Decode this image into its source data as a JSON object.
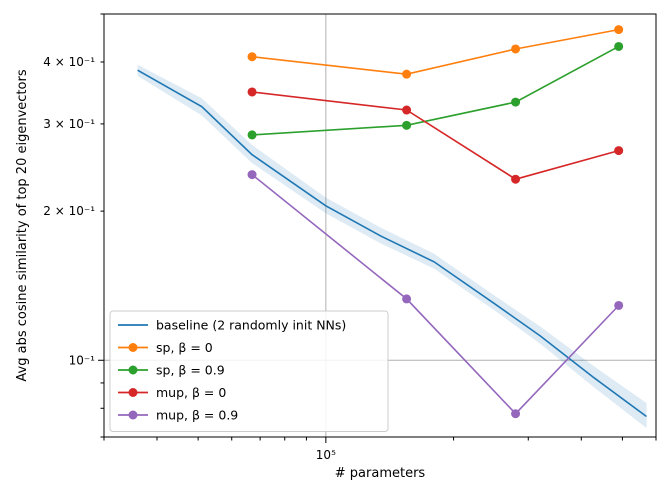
{
  "chart_data": {
    "type": "line",
    "xscale": "log",
    "yscale": "log",
    "xlabel": "# parameters",
    "ylabel": "Avg abs cosine similarity of top 20 eigenvectors",
    "xlim": [
      30000,
      600000
    ],
    "ylim": [
      0.07,
      0.5
    ],
    "grid": "major ticks only",
    "legend_position": "lower-left",
    "x_tick_labels": [
      {
        "value": 100000,
        "label": "10⁵"
      }
    ],
    "y_tick_labels": [
      {
        "value": 0.1,
        "label": "10⁻¹"
      },
      {
        "value": 0.2,
        "label": "2 × 10⁻¹"
      },
      {
        "value": 0.3,
        "label": "3 × 10⁻¹"
      },
      {
        "value": 0.4,
        "label": "4 × 10⁻¹"
      }
    ],
    "series": [
      {
        "name": "baseline (2 randomly init NNs)",
        "color": "#1f77b4",
        "marker": "none",
        "band": true,
        "x": [
          36000,
          51000,
          67000,
          100000,
          135000,
          180000,
          250000,
          320000,
          430000,
          570000
        ],
        "y": [
          0.385,
          0.325,
          0.26,
          0.205,
          0.178,
          0.158,
          0.13,
          0.112,
          0.092,
          0.077
        ],
        "band_lower": [
          0.375,
          0.312,
          0.25,
          0.198,
          0.172,
          0.153,
          0.126,
          0.108,
          0.088,
          0.073
        ],
        "band_upper": [
          0.395,
          0.338,
          0.272,
          0.213,
          0.185,
          0.164,
          0.135,
          0.117,
          0.097,
          0.082
        ]
      },
      {
        "name": "sp, β = 0",
        "color": "#ff7f0e",
        "marker": "circle",
        "x": [
          67000,
          155000,
          280000,
          490000
        ],
        "y": [
          0.41,
          0.378,
          0.425,
          0.465
        ]
      },
      {
        "name": "sp, β = 0.9",
        "color": "#2ca02c",
        "marker": "circle",
        "x": [
          67000,
          155000,
          280000,
          490000
        ],
        "y": [
          0.285,
          0.298,
          0.332,
          0.43
        ]
      },
      {
        "name": "mup, β = 0",
        "color": "#d62728",
        "marker": "circle",
        "x": [
          67000,
          155000,
          280000,
          490000
        ],
        "y": [
          0.348,
          0.32,
          0.232,
          0.265
        ]
      },
      {
        "name": "mup, β = 0.9",
        "color": "#9467bd",
        "marker": "circle",
        "x": [
          67000,
          155000,
          280000,
          490000
        ],
        "y": [
          0.237,
          0.133,
          0.078,
          0.129
        ]
      }
    ]
  }
}
